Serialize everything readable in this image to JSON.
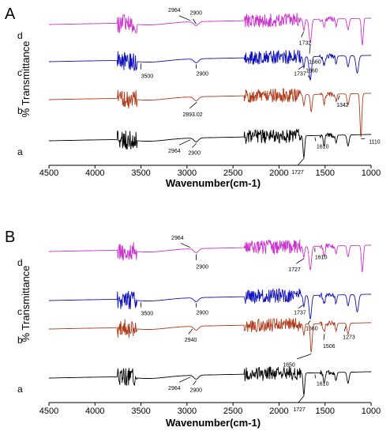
{
  "chart_data": [
    {
      "type": "line",
      "panel": "A",
      "xlabel": "Wavenumber(cm-1)",
      "ylabel": "% Transmittance",
      "xlim": [
        4500,
        1000
      ],
      "xticks": [
        "4500",
        "4000",
        "3500",
        "3000",
        "2500",
        "2000",
        "1500",
        "1000"
      ],
      "series": [
        {
          "name": "d",
          "color": "#cc33cc",
          "annotations": [
            {
              "text": "2964",
              "x": 2964
            },
            {
              "text": "2900",
              "x": 2900
            },
            {
              "text": "1732",
              "x": 1732
            },
            {
              "text": "1660",
              "x": 1660
            }
          ]
        },
        {
          "name": "c",
          "color": "#1111bb",
          "annotations": [
            {
              "text": "3500",
              "x": 3500
            },
            {
              "text": "2900",
              "x": 2900
            },
            {
              "text": "1737",
              "x": 1737
            },
            {
              "text": "1660",
              "x": 1660
            }
          ]
        },
        {
          "name": "b",
          "color": "#b03a1a",
          "annotations": [
            {
              "text": "2893.02",
              "x": 2893
            },
            {
              "text": "1342",
              "x": 1342
            },
            {
              "text": "1110",
              "x": 1110
            }
          ]
        },
        {
          "name": "a",
          "color": "#000000",
          "annotations": [
            {
              "text": "2964",
              "x": 2964
            },
            {
              "text": "2900",
              "x": 2900
            },
            {
              "text": "1727",
              "x": 1727
            },
            {
              "text": "1610",
              "x": 1610
            }
          ]
        }
      ]
    },
    {
      "type": "line",
      "panel": "B",
      "xlabel": "Wavenumber(cm-1)",
      "ylabel": "% Transmittance",
      "xlim": [
        4500,
        1000
      ],
      "xticks": [
        "4500",
        "4000",
        "3500",
        "3000",
        "2500",
        "2000",
        "1500",
        "1000"
      ],
      "series": [
        {
          "name": "d",
          "color": "#cc33cc",
          "annotations": [
            {
              "text": "2964",
              "x": 2964
            },
            {
              "text": "2900",
              "x": 2900
            },
            {
              "text": "1727",
              "x": 1727
            },
            {
              "text": "1610",
              "x": 1610
            }
          ]
        },
        {
          "name": "c",
          "color": "#1111bb",
          "annotations": [
            {
              "text": "3500",
              "x": 3500
            },
            {
              "text": "2900",
              "x": 2900
            },
            {
              "text": "1737",
              "x": 1737
            },
            {
              "text": "1660",
              "x": 1660
            }
          ]
        },
        {
          "name": "b",
          "color": "#b03a1a",
          "annotations": [
            {
              "text": "2940",
              "x": 2940
            },
            {
              "text": "1650",
              "x": 1650
            },
            {
              "text": "1506",
              "x": 1506
            },
            {
              "text": "1273",
              "x": 1273
            }
          ]
        },
        {
          "name": "a",
          "color": "#000000",
          "annotations": [
            {
              "text": "2964",
              "x": 2964
            },
            {
              "text": "2900",
              "x": 2900
            },
            {
              "text": "1727",
              "x": 1727
            },
            {
              "text": "1610",
              "x": 1610
            }
          ]
        }
      ]
    }
  ]
}
